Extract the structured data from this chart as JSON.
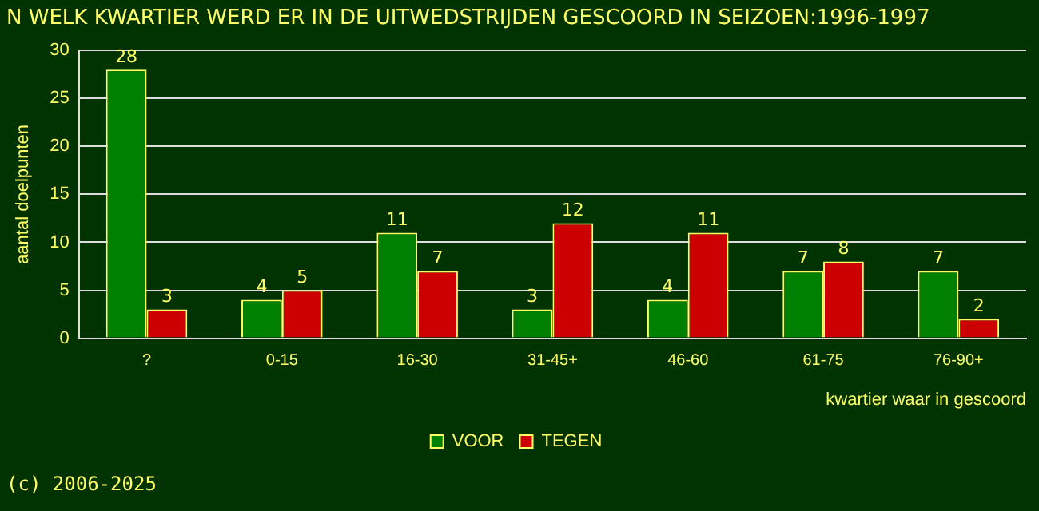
{
  "chart_data": {
    "type": "bar",
    "title": "N WELK KWARTIER WERD ER IN DE UITWEDSTRIJDEN GESCOORD IN SEIZOEN:1996-1997",
    "ylabel": "aantal doelpunten",
    "xlabel": "kwartier waar in gescoord",
    "categories": [
      "?",
      "0-15",
      "16-30",
      "31-45+",
      "46-60",
      "61-75",
      "76-90+"
    ],
    "series": [
      {
        "name": "VOOR",
        "color": "#008000",
        "values": [
          28,
          4,
          11,
          3,
          4,
          7,
          7
        ]
      },
      {
        "name": "TEGEN",
        "color": "#cc0000",
        "values": [
          3,
          5,
          7,
          12,
          11,
          8,
          2
        ]
      }
    ],
    "ylim": [
      0,
      30
    ],
    "yticks": [
      0,
      5,
      10,
      15,
      20,
      25,
      30
    ],
    "grid": "y",
    "legend": "bottom",
    "data_labels": true,
    "annotations": [
      "(c) 2006-2025"
    ]
  }
}
